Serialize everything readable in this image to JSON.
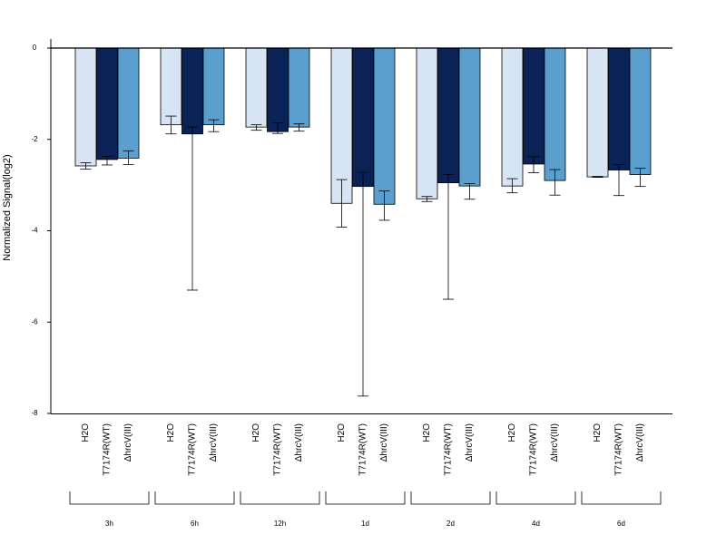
{
  "chart_data": {
    "type": "bar",
    "ylabel": "Normalized Signal(log2)",
    "ylim": [
      -8,
      0
    ],
    "yticks": [
      0,
      -2,
      -4,
      -6,
      -8
    ],
    "y_tick_labels": [
      "0",
      "-2",
      "-4",
      "-6",
      "-8"
    ],
    "grid": false,
    "legend": "none",
    "groups": [
      "3h",
      "6h",
      "12h",
      "1d",
      "2d",
      "4d",
      "6d"
    ],
    "bar_labels": [
      "H2O",
      "T7174R(WT)",
      "ΔhrcV(III)"
    ],
    "series": [
      {
        "name": "H2O",
        "color": "#d6e4f4",
        "values": [
          -2.58,
          -1.68,
          -1.73,
          -3.4,
          -3.3,
          -3.02,
          -2.82
        ],
        "err_low": [
          -2.65,
          -1.88,
          -1.8,
          -3.92,
          -3.36,
          -3.17,
          -2.83
        ],
        "err_high": [
          -2.51,
          -1.49,
          -1.68,
          -2.88,
          -3.25,
          -2.86,
          -2.81
        ]
      },
      {
        "name": "T7174R(WT)",
        "color": "#0a2256",
        "values": [
          -2.44,
          -1.88,
          -1.83,
          -3.03,
          -2.95,
          -2.54,
          -2.67
        ],
        "err_low": [
          -2.56,
          -5.3,
          -1.87,
          -7.62,
          -5.5,
          -2.73,
          -3.23
        ],
        "err_high": [
          -2.37,
          -1.73,
          -1.64,
          -2.72,
          -2.77,
          -2.38,
          -2.55
        ]
      },
      {
        "name": "ΔhrcV(III)",
        "color": "#5a9fcd",
        "values": [
          -2.41,
          -1.68,
          -1.73,
          -3.42,
          -3.02,
          -2.9,
          -2.77
        ],
        "err_low": [
          -2.55,
          -1.83,
          -1.82,
          -3.77,
          -3.31,
          -3.22,
          -3.03
        ],
        "err_high": [
          -2.25,
          -1.57,
          -1.66,
          -3.13,
          -2.97,
          -2.66,
          -2.63
        ]
      }
    ]
  }
}
